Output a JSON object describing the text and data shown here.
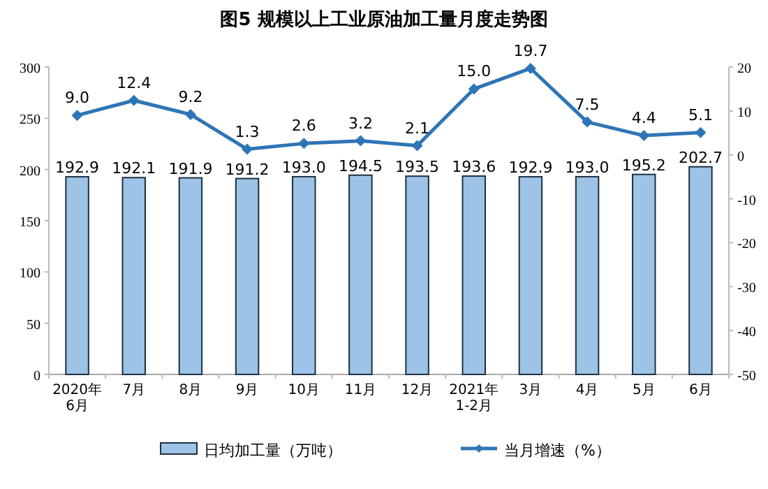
{
  "chart_data": {
    "type": "bar",
    "title": "图5  规模以上工业原油加工量月度走势图",
    "categories": [
      "2020年\n6月",
      "7月",
      "8月",
      "9月",
      "10月",
      "11月",
      "12月",
      "2021年\n1-2月",
      "3月",
      "4月",
      "5月",
      "6月"
    ],
    "series": [
      {
        "name": "日均加工量（万吨）",
        "color": "#9dc3e6",
        "values": [
          192.9,
          192.1,
          191.9,
          191.2,
          193.0,
          194.5,
          193.5,
          193.6,
          192.9,
          193.0,
          195.2,
          202.7
        ],
        "value_labels": [
          "192.9",
          "192.1",
          "191.9",
          "191.2",
          "193.0",
          "194.5",
          "193.5",
          "193.6",
          "192.9",
          "193.0",
          "195.2",
          "202.7"
        ]
      },
      {
        "name": "当月增速（%）",
        "type": "line",
        "axis": "y2",
        "marker": "diamond",
        "color": "#2e75b6",
        "values": [
          9.0,
          12.4,
          9.2,
          1.3,
          2.6,
          3.2,
          2.1,
          15.0,
          19.7,
          7.5,
          4.4,
          5.1
        ],
        "value_labels": [
          "9.0",
          "12.4",
          "9.2",
          "1.3",
          "2.6",
          "3.2",
          "2.1",
          "15.0",
          "19.7",
          "7.5",
          "4.4",
          "5.1"
        ]
      }
    ],
    "ylim": [
      0,
      300
    ],
    "yticks": [
      0,
      50,
      100,
      150,
      200,
      250,
      300
    ],
    "y2lim": [
      -50,
      20
    ],
    "y2ticks": [
      -50,
      -40,
      -30,
      -20,
      -10,
      0,
      10,
      20
    ],
    "legend": "bottom"
  }
}
